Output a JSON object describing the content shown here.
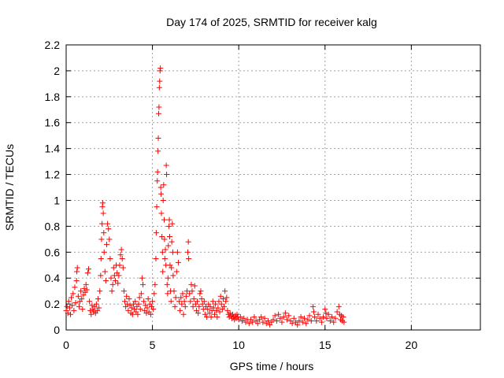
{
  "chart_data": {
    "type": "scatter",
    "title": "Day 174 of 2025, SRMTID for receiver kalg",
    "xlabel": "GPS time / hours",
    "ylabel": "SRMTID / TECUs",
    "xlim": [
      0,
      24
    ],
    "ylim": [
      0,
      2.2
    ],
    "grid": true,
    "marker": "plus",
    "color": "#ff0000",
    "x_ticks": [
      0,
      5,
      10,
      15,
      20
    ],
    "x_tick_labels": [
      "0",
      "5",
      "10",
      "15",
      "20"
    ],
    "y_ticks": [
      0,
      0.2,
      0.4,
      0.6,
      0.8,
      1.0,
      1.2,
      1.4,
      1.6,
      1.8,
      2.0,
      2.2
    ],
    "y_tick_labels": [
      "0",
      "0.2",
      "0.4",
      "0.6",
      "0.8",
      "1",
      "1.2",
      "1.4",
      "1.6",
      "1.8",
      "2",
      "2.2"
    ],
    "series": [
      {
        "name": "SRMTID",
        "points": [
          [
            0.0,
            0.15
          ],
          [
            0.05,
            0.18
          ],
          [
            0.1,
            0.13
          ],
          [
            0.15,
            0.22
          ],
          [
            0.2,
            0.17
          ],
          [
            0.25,
            0.12
          ],
          [
            0.3,
            0.25
          ],
          [
            0.35,
            0.19
          ],
          [
            0.4,
            0.28
          ],
          [
            0.45,
            0.15
          ],
          [
            0.5,
            0.33
          ],
          [
            0.55,
            0.21
          ],
          [
            0.6,
            0.38
          ],
          [
            0.62,
            0.45
          ],
          [
            0.65,
            0.48
          ],
          [
            0.7,
            0.26
          ],
          [
            0.75,
            0.18
          ],
          [
            0.8,
            0.22
          ],
          [
            0.85,
            0.3
          ],
          [
            0.9,
            0.24
          ],
          [
            0.95,
            0.16
          ],
          [
            1.0,
            0.27
          ],
          [
            1.05,
            0.32
          ],
          [
            1.1,
            0.29
          ],
          [
            1.15,
            0.35
          ],
          [
            1.2,
            0.31
          ],
          [
            1.25,
            0.44
          ],
          [
            1.3,
            0.47
          ],
          [
            1.35,
            0.22
          ],
          [
            1.4,
            0.15
          ],
          [
            1.45,
            0.12
          ],
          [
            1.5,
            0.19
          ],
          [
            1.55,
            0.16
          ],
          [
            1.6,
            0.14
          ],
          [
            1.65,
            0.18
          ],
          [
            1.7,
            0.13
          ],
          [
            1.75,
            0.2
          ],
          [
            1.8,
            0.15
          ],
          [
            1.85,
            0.24
          ],
          [
            1.9,
            0.17
          ],
          [
            1.95,
            0.3
          ],
          [
            2.0,
            0.42
          ],
          [
            2.02,
            0.55
          ],
          [
            2.05,
            0.7
          ],
          [
            2.08,
            0.82
          ],
          [
            2.1,
            0.95
          ],
          [
            2.12,
            0.98
          ],
          [
            2.15,
            0.9
          ],
          [
            2.18,
            0.75
          ],
          [
            2.2,
            0.6
          ],
          [
            2.25,
            0.45
          ],
          [
            2.3,
            0.38
          ],
          [
            2.35,
            0.66
          ],
          [
            2.4,
            0.82
          ],
          [
            2.45,
            0.78
          ],
          [
            2.5,
            0.7
          ],
          [
            2.55,
            0.55
          ],
          [
            2.6,
            0.4
          ],
          [
            2.65,
            0.3
          ],
          [
            2.7,
            0.35
          ],
          [
            2.75,
            0.48
          ],
          [
            2.8,
            0.42
          ],
          [
            2.85,
            0.38
          ],
          [
            2.9,
            0.5
          ],
          [
            2.95,
            0.44
          ],
          [
            3.0,
            0.36
          ],
          [
            3.05,
            0.42
          ],
          [
            3.1,
            0.5
          ],
          [
            3.15,
            0.58
          ],
          [
            3.2,
            0.62
          ],
          [
            3.25,
            0.55
          ],
          [
            3.3,
            0.48
          ],
          [
            3.35,
            0.3
          ],
          [
            3.4,
            0.22
          ],
          [
            3.45,
            0.18
          ],
          [
            3.5,
            0.26
          ],
          [
            3.55,
            0.2
          ],
          [
            3.6,
            0.15
          ],
          [
            3.65,
            0.24
          ],
          [
            3.7,
            0.19
          ],
          [
            3.75,
            0.13
          ],
          [
            3.8,
            0.17
          ],
          [
            3.85,
            0.12
          ],
          [
            3.9,
            0.2
          ],
          [
            3.95,
            0.16
          ],
          [
            4.0,
            0.22
          ],
          [
            4.05,
            0.14
          ],
          [
            4.1,
            0.18
          ],
          [
            4.15,
            0.12
          ],
          [
            4.2,
            0.2
          ],
          [
            4.25,
            0.25
          ],
          [
            4.3,
            0.16
          ],
          [
            4.35,
            0.28
          ],
          [
            4.4,
            0.4
          ],
          [
            4.45,
            0.35
          ],
          [
            4.5,
            0.22
          ],
          [
            4.55,
            0.15
          ],
          [
            4.6,
            0.19
          ],
          [
            4.65,
            0.13
          ],
          [
            4.7,
            0.17
          ],
          [
            4.75,
            0.24
          ],
          [
            4.8,
            0.14
          ],
          [
            4.85,
            0.2
          ],
          [
            4.9,
            0.12
          ],
          [
            4.95,
            0.18
          ],
          [
            5.0,
            0.22
          ],
          [
            5.05,
            0.16
          ],
          [
            5.1,
            0.28
          ],
          [
            5.15,
            0.35
          ],
          [
            5.2,
            0.55
          ],
          [
            5.22,
            0.75
          ],
          [
            5.25,
            0.95
          ],
          [
            5.28,
            1.15
          ],
          [
            5.3,
            1.22
          ],
          [
            5.32,
            1.38
          ],
          [
            5.34,
            1.48
          ],
          [
            5.36,
            1.67
          ],
          [
            5.38,
            1.72
          ],
          [
            5.4,
            1.87
          ],
          [
            5.42,
            1.92
          ],
          [
            5.44,
            2.0
          ],
          [
            5.46,
            2.02
          ],
          [
            5.48,
            1.1
          ],
          [
            5.5,
            1.05
          ],
          [
            5.52,
            0.9
          ],
          [
            5.55,
            0.72
          ],
          [
            5.58,
            0.6
          ],
          [
            5.6,
            0.45
          ],
          [
            5.62,
            1.0
          ],
          [
            5.65,
            1.12
          ],
          [
            5.68,
            0.85
          ],
          [
            5.7,
            0.7
          ],
          [
            5.72,
            0.55
          ],
          [
            5.75,
            0.62
          ],
          [
            5.78,
            0.5
          ],
          [
            5.8,
            1.27
          ],
          [
            5.82,
            1.2
          ],
          [
            5.85,
            0.35
          ],
          [
            5.88,
            0.28
          ],
          [
            5.9,
            0.4
          ],
          [
            5.92,
            0.65
          ],
          [
            5.95,
            0.8
          ],
          [
            5.98,
            0.85
          ],
          [
            6.0,
            0.72
          ],
          [
            6.02,
            0.5
          ],
          [
            6.05,
            0.3
          ],
          [
            6.08,
            0.22
          ],
          [
            6.1,
            0.48
          ],
          [
            6.12,
            0.68
          ],
          [
            6.15,
            0.82
          ],
          [
            6.18,
            0.6
          ],
          [
            6.2,
            0.42
          ],
          [
            6.25,
            0.3
          ],
          [
            6.3,
            0.18
          ],
          [
            6.35,
            0.25
          ],
          [
            6.4,
            0.45
          ],
          [
            6.45,
            0.6
          ],
          [
            6.5,
            0.52
          ],
          [
            6.55,
            0.22
          ],
          [
            6.6,
            0.15
          ],
          [
            6.65,
            0.25
          ],
          [
            6.7,
            0.2
          ],
          [
            6.75,
            0.28
          ],
          [
            6.8,
            0.12
          ],
          [
            6.85,
            0.22
          ],
          [
            6.9,
            0.18
          ],
          [
            6.95,
            0.26
          ],
          [
            7.0,
            0.3
          ],
          [
            7.05,
            0.6
          ],
          [
            7.08,
            0.68
          ],
          [
            7.1,
            0.55
          ],
          [
            7.15,
            0.28
          ],
          [
            7.2,
            0.22
          ],
          [
            7.25,
            0.35
          ],
          [
            7.3,
            0.3
          ],
          [
            7.35,
            0.18
          ],
          [
            7.4,
            0.24
          ],
          [
            7.45,
            0.34
          ],
          [
            7.5,
            0.2
          ],
          [
            7.55,
            0.15
          ],
          [
            7.6,
            0.22
          ],
          [
            7.65,
            0.13
          ],
          [
            7.7,
            0.18
          ],
          [
            7.75,
            0.28
          ],
          [
            7.8,
            0.3
          ],
          [
            7.85,
            0.24
          ],
          [
            7.9,
            0.2
          ],
          [
            7.95,
            0.16
          ],
          [
            8.0,
            0.22
          ],
          [
            8.05,
            0.12
          ],
          [
            8.1,
            0.18
          ],
          [
            8.15,
            0.1
          ],
          [
            8.2,
            0.16
          ],
          [
            8.25,
            0.2
          ],
          [
            8.3,
            0.13
          ],
          [
            8.35,
            0.18
          ],
          [
            8.4,
            0.1
          ],
          [
            8.45,
            0.15
          ],
          [
            8.5,
            0.22
          ],
          [
            8.55,
            0.17
          ],
          [
            8.6,
            0.12
          ],
          [
            8.65,
            0.2
          ],
          [
            8.7,
            0.15
          ],
          [
            8.75,
            0.1
          ],
          [
            8.8,
            0.17
          ],
          [
            8.85,
            0.22
          ],
          [
            8.9,
            0.14
          ],
          [
            8.95,
            0.26
          ],
          [
            9.0,
            0.2
          ],
          [
            9.05,
            0.16
          ],
          [
            9.1,
            0.24
          ],
          [
            9.15,
            0.18
          ],
          [
            9.2,
            0.3
          ],
          [
            9.25,
            0.22
          ],
          [
            9.3,
            0.25
          ],
          [
            9.35,
            0.15
          ],
          [
            9.4,
            0.12
          ],
          [
            9.45,
            0.1
          ],
          [
            9.5,
            0.13
          ],
          [
            9.55,
            0.11
          ],
          [
            9.6,
            0.09
          ],
          [
            9.65,
            0.12
          ],
          [
            9.7,
            0.1
          ],
          [
            9.75,
            0.08
          ],
          [
            9.8,
            0.11
          ],
          [
            9.85,
            0.09
          ],
          [
            9.9,
            0.12
          ],
          [
            9.95,
            0.1
          ],
          [
            10.0,
            0.08
          ],
          [
            10.1,
            0.1
          ],
          [
            10.2,
            0.07
          ],
          [
            10.3,
            0.09
          ],
          [
            10.4,
            0.06
          ],
          [
            10.5,
            0.08
          ],
          [
            10.6,
            0.05
          ],
          [
            10.7,
            0.08
          ],
          [
            10.8,
            0.06
          ],
          [
            10.9,
            0.1
          ],
          [
            11.0,
            0.07
          ],
          [
            11.1,
            0.05
          ],
          [
            11.2,
            0.08
          ],
          [
            11.3,
            0.1
          ],
          [
            11.4,
            0.06
          ],
          [
            11.5,
            0.09
          ],
          [
            11.6,
            0.05
          ],
          [
            11.7,
            0.07
          ],
          [
            11.8,
            0.04
          ],
          [
            11.9,
            0.06
          ],
          [
            12.0,
            0.08
          ],
          [
            12.1,
            0.11
          ],
          [
            12.2,
            0.07
          ],
          [
            12.3,
            0.12
          ],
          [
            12.4,
            0.09
          ],
          [
            12.5,
            0.06
          ],
          [
            12.6,
            0.1
          ],
          [
            12.7,
            0.13
          ],
          [
            12.8,
            0.08
          ],
          [
            12.9,
            0.11
          ],
          [
            13.0,
            0.07
          ],
          [
            13.1,
            0.05
          ],
          [
            13.2,
            0.09
          ],
          [
            13.3,
            0.06
          ],
          [
            13.4,
            0.04
          ],
          [
            13.5,
            0.07
          ],
          [
            13.6,
            0.1
          ],
          [
            13.7,
            0.06
          ],
          [
            13.8,
            0.09
          ],
          [
            13.9,
            0.05
          ],
          [
            14.0,
            0.08
          ],
          [
            14.1,
            0.11
          ],
          [
            14.2,
            0.07
          ],
          [
            14.3,
            0.18
          ],
          [
            14.35,
            0.14
          ],
          [
            14.4,
            0.1
          ],
          [
            14.5,
            0.07
          ],
          [
            14.6,
            0.12
          ],
          [
            14.7,
            0.09
          ],
          [
            14.8,
            0.06
          ],
          [
            14.9,
            0.1
          ],
          [
            15.0,
            0.16
          ],
          [
            15.05,
            0.13
          ],
          [
            15.1,
            0.09
          ],
          [
            15.2,
            0.12
          ],
          [
            15.3,
            0.07
          ],
          [
            15.4,
            0.1
          ],
          [
            15.5,
            0.06
          ],
          [
            15.6,
            0.09
          ],
          [
            15.7,
            0.14
          ],
          [
            15.8,
            0.18
          ],
          [
            15.85,
            0.12
          ],
          [
            15.9,
            0.08
          ],
          [
            15.95,
            0.11
          ],
          [
            16.0,
            0.07
          ],
          [
            16.05,
            0.1
          ],
          [
            16.1,
            0.06
          ]
        ]
      }
    ]
  }
}
